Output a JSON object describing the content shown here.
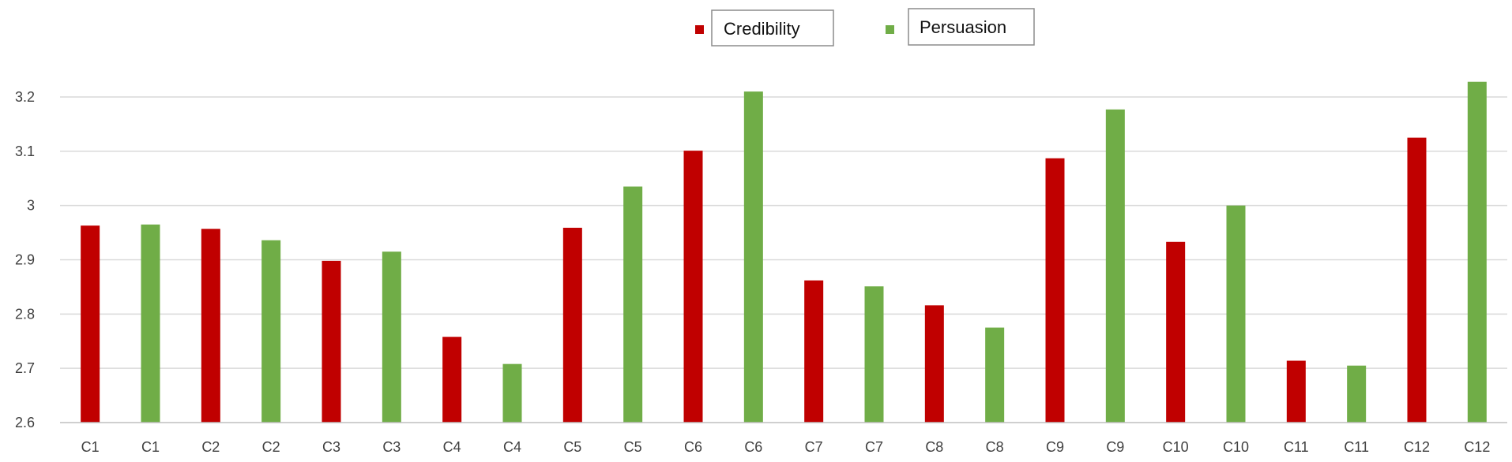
{
  "chart_data": {
    "type": "bar",
    "categories": [
      "C1",
      "C1",
      "C2",
      "C2",
      "C3",
      "C3",
      "C4",
      "C4",
      "C5",
      "C5",
      "C6",
      "C6",
      "C7",
      "C7",
      "C8",
      "C8",
      "C9",
      "C9",
      "C10",
      "C10",
      "C11",
      "C11",
      "C12",
      "C12"
    ],
    "series": [
      {
        "name": "Credibility",
        "color": "#c00000",
        "values": [
          2.963,
          null,
          2.957,
          null,
          2.898,
          null,
          2.758,
          null,
          2.959,
          null,
          3.101,
          null,
          2.862,
          null,
          2.816,
          null,
          3.087,
          null,
          2.933,
          null,
          2.714,
          null,
          3.125,
          null
        ]
      },
      {
        "name": "Persuasion",
        "color": "#70ad47",
        "values": [
          null,
          2.965,
          null,
          2.936,
          null,
          2.915,
          null,
          2.708,
          null,
          3.035,
          null,
          3.21,
          null,
          2.851,
          null,
          2.775,
          null,
          3.177,
          null,
          3.0,
          null,
          2.705,
          null,
          3.228
        ]
      }
    ],
    "yticks": [
      "2.6",
      "2.7",
      "2.8",
      "2.9",
      "3",
      "3.1",
      "3.2"
    ],
    "ylim": [
      2.6,
      3.25
    ],
    "grid": true,
    "legend": "top-center",
    "title": "",
    "xlabel": "",
    "ylabel": ""
  }
}
